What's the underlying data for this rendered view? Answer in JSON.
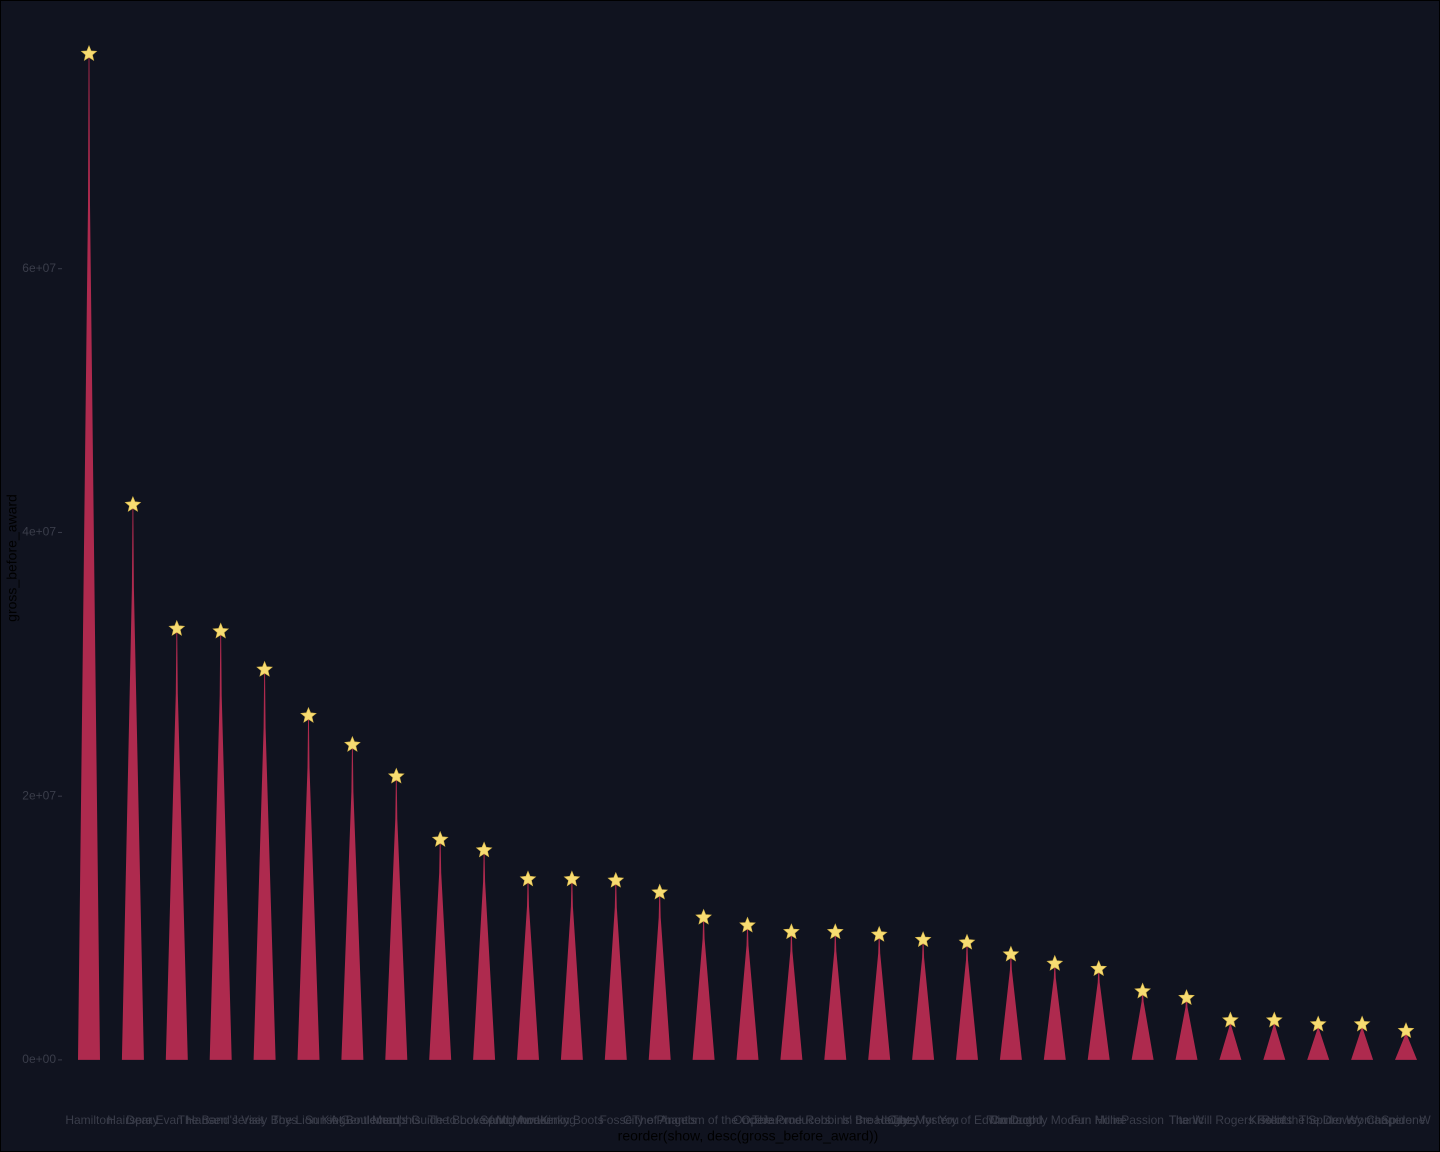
{
  "chart_data": {
    "type": "tree",
    "x_label": "reorder(show, desc(gross_before_award))",
    "y_label": "gross_before_award",
    "categories": [
      "Hamilton",
      "Hairspray",
      "Dear Evan Hansen",
      "The Band's Visit",
      "Jersey Boys",
      "The Lion King",
      "Sunset Boulevard",
      "Memphis",
      "A Gentleman's Guide to Love and Murder",
      "The Book of Mormon",
      "Spring Awakening",
      "Kinky Boots",
      "Fosse",
      "City of Angels",
      "The Phantom of the Opera",
      "Once",
      "The Producers",
      "Jerome Robbins' Broadway",
      "In the Heights",
      "Crazy for You",
      "The Mystery of Edwin Drood",
      "Contact",
      "Thoroughly Modern Millie",
      "Fun Home",
      "Passion",
      "Titanic",
      "The Will Rogers Follies",
      "Rent",
      "Kiss of the Spider Woman",
      "The Drowsy Chaperone",
      "Spider W"
    ],
    "values": [
      76300000,
      42100000,
      32700000,
      32500000,
      29600000,
      26100000,
      23900000,
      21500000,
      16700000,
      15900000,
      13700000,
      13700000,
      13600000,
      12700000,
      10800000,
      10200000,
      9700000,
      9700000,
      9500000,
      9100000,
      8900000,
      8000000,
      7300000,
      6900000,
      5200000,
      4700000,
      3000000,
      3000000,
      2700000,
      2700000,
      2200000
    ],
    "color": "#ae2a4e",
    "star_color": "#f7dc72",
    "ylim": [
      -3800000,
      80000000
    ],
    "yticks": [
      {
        "value": 0,
        "label": "0e+00"
      },
      {
        "value": 20000000,
        "label": "2e+07"
      },
      {
        "value": 40000000,
        "label": "4e+07"
      },
      {
        "value": 60000000,
        "label": "6e+07"
      }
    ]
  }
}
